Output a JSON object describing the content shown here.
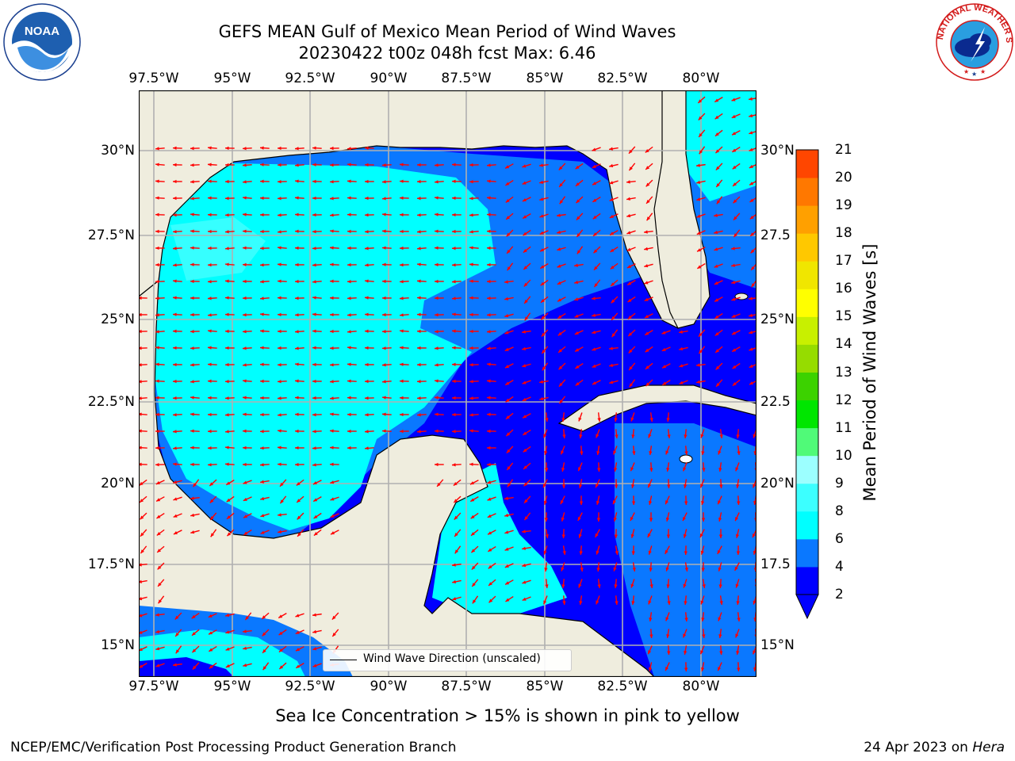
{
  "title": {
    "line1": "GEFS MEAN Gulf of Mexico Mean Period of Wind Waves",
    "line2": "20230422 t00z 048h fcst   Max: 6.46"
  },
  "map": {
    "lon_labels": [
      "97.5°W",
      "95°W",
      "92.5°W",
      "90°W",
      "87.5°W",
      "85°W",
      "82.5°W",
      "80°W"
    ],
    "lat_labels_left": [
      "30°N",
      "27.5°N",
      "25°N",
      "22.5°N",
      "20°N",
      "17.5°N",
      "15°N"
    ],
    "lat_labels_right": [
      "30°N",
      "27.5",
      "25°N",
      "22.5",
      "20°N",
      "17.5",
      "15°N"
    ],
    "legend_text": "Wind Wave Direction (unscaled)",
    "land_color": "#efedde",
    "grid_color": "#b0b0b0",
    "arrow_color": "#ff0000"
  },
  "colorbar": {
    "label": "Mean Period of Wind Waves [s]",
    "ticks": [
      "2",
      "4",
      "6",
      "8",
      "9",
      "10",
      "11",
      "12",
      "13",
      "14",
      "15",
      "16",
      "17",
      "18",
      "19",
      "20",
      "21"
    ],
    "colors": [
      "#0000ff",
      "#0a78ff",
      "#00ffff",
      "#3cffff",
      "#9cffff",
      "#50fa78",
      "#00e600",
      "#3cd200",
      "#96dc00",
      "#c8f000",
      "#ffff00",
      "#f0e600",
      "#ffc800",
      "#ffa000",
      "#ff7800",
      "#ff4600",
      "#ff0000"
    ]
  },
  "footer": {
    "note": "Sea Ice Concentration > 15% is shown in pink to yellow",
    "left": "NCEP/EMC/Verification Post Processing Product Generation Branch",
    "right_date": "24 Apr 2023 on ",
    "right_host": "Hera"
  },
  "logos": {
    "noaa": "NOAA",
    "nws_ring": "NATIONAL WEATHER SERVICE"
  }
}
